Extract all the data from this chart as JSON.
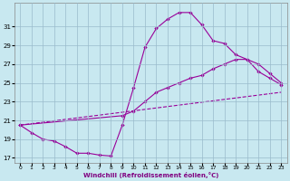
{
  "background_color": "#c8e8f0",
  "line_color": "#990099",
  "grid_color": "#99bbcc",
  "xlim": [
    -0.5,
    23.5
  ],
  "ylim": [
    16.5,
    33.5
  ],
  "xticks": [
    0,
    1,
    2,
    3,
    4,
    5,
    6,
    7,
    8,
    9,
    10,
    11,
    12,
    13,
    14,
    15,
    16,
    17,
    18,
    19,
    20,
    21,
    22,
    23
  ],
  "yticks": [
    17,
    19,
    21,
    23,
    25,
    27,
    29,
    31
  ],
  "xlabel": "Windchill (Refroidissement éolien,°C)",
  "series1_x": [
    0,
    1,
    2,
    3,
    4,
    5,
    6,
    7,
    8,
    9,
    10,
    11,
    12,
    13,
    14,
    15,
    16,
    17,
    18,
    19,
    20,
    21,
    22,
    23
  ],
  "series1_y": [
    20.5,
    19.7,
    19.0,
    18.8,
    18.2,
    17.5,
    17.5,
    17.3,
    17.2,
    20.5,
    24.5,
    28.8,
    30.8,
    31.8,
    32.5,
    32.5,
    31.2,
    29.5,
    29.2,
    28.0,
    27.5,
    26.2,
    25.5,
    24.8
  ],
  "series2_x": [
    0,
    9,
    10,
    11,
    12,
    13,
    14,
    15,
    16,
    17,
    18,
    19,
    20,
    21,
    22,
    23
  ],
  "series2_y": [
    20.5,
    21.5,
    22.0,
    23.0,
    24.0,
    24.5,
    25.0,
    25.5,
    25.8,
    26.5,
    27.0,
    27.5,
    27.5,
    27.0,
    26.0,
    25.0
  ],
  "series3_x": [
    0,
    23
  ],
  "series3_y": [
    20.5,
    24.0
  ]
}
